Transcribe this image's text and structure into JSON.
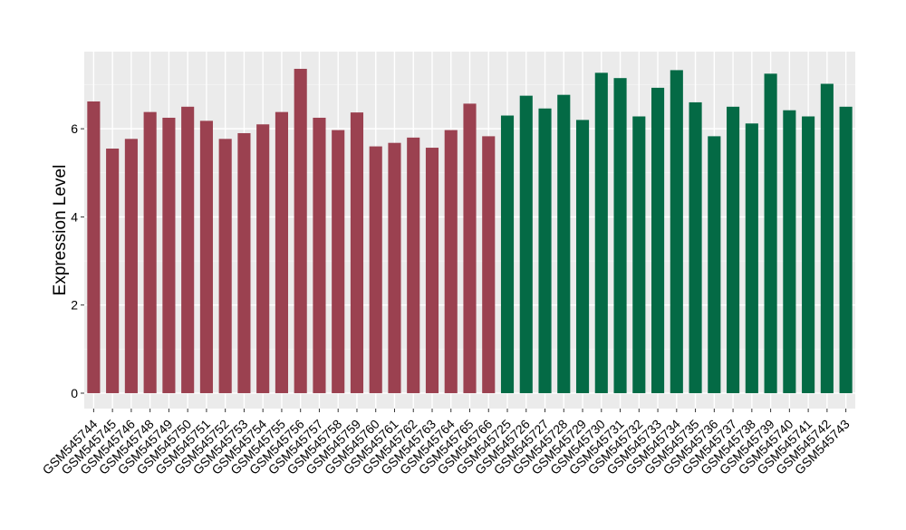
{
  "chart_data": {
    "type": "bar",
    "title": "",
    "xlabel": "",
    "ylabel": "Expression Level",
    "ylim": [
      -0.35,
      7.75
    ],
    "yticks": [
      0,
      2,
      4,
      6
    ],
    "ytick_labels": [
      "0",
      "2",
      "4",
      "6"
    ],
    "grid": true,
    "legend": "none",
    "categories": [
      "GSM545744",
      "GSM545745",
      "GSM545746",
      "GSM545748",
      "GSM545749",
      "GSM545750",
      "GSM545751",
      "GSM545752",
      "GSM545753",
      "GSM545754",
      "GSM545755",
      "GSM545756",
      "GSM545757",
      "GSM545758",
      "GSM545759",
      "GSM545760",
      "GSM545761",
      "GSM545762",
      "GSM545763",
      "GSM545764",
      "GSM545765",
      "GSM545766",
      "GSM545725",
      "GSM545726",
      "GSM545727",
      "GSM545728",
      "GSM545729",
      "GSM545730",
      "GSM545731",
      "GSM545732",
      "GSM545733",
      "GSM545734",
      "GSM545735",
      "GSM545736",
      "GSM545737",
      "GSM545738",
      "GSM545739",
      "GSM545740",
      "GSM545741",
      "GSM545742",
      "GSM545743"
    ],
    "values": [
      6.62,
      5.55,
      5.77,
      6.38,
      6.25,
      6.5,
      6.18,
      5.77,
      5.9,
      6.1,
      6.38,
      7.36,
      6.25,
      5.97,
      6.37,
      5.6,
      5.68,
      5.8,
      5.57,
      5.97,
      6.57,
      5.83,
      6.3,
      6.75,
      6.46,
      6.77,
      6.2,
      7.27,
      7.15,
      6.28,
      6.93,
      7.33,
      6.6,
      5.83,
      6.5,
      6.12,
      7.25,
      6.42,
      6.28,
      7.02,
      6.5
    ],
    "groups": [
      {
        "color": "#9b4150",
        "count": 22
      },
      {
        "color": "#046a45",
        "count": 19
      }
    ],
    "colors": {
      "panel_background": "#ebebeb",
      "grid_major": "#ffffff",
      "grid_minor": "#f5f5f5",
      "axis_text": "#000000",
      "tick": "#333333"
    }
  }
}
